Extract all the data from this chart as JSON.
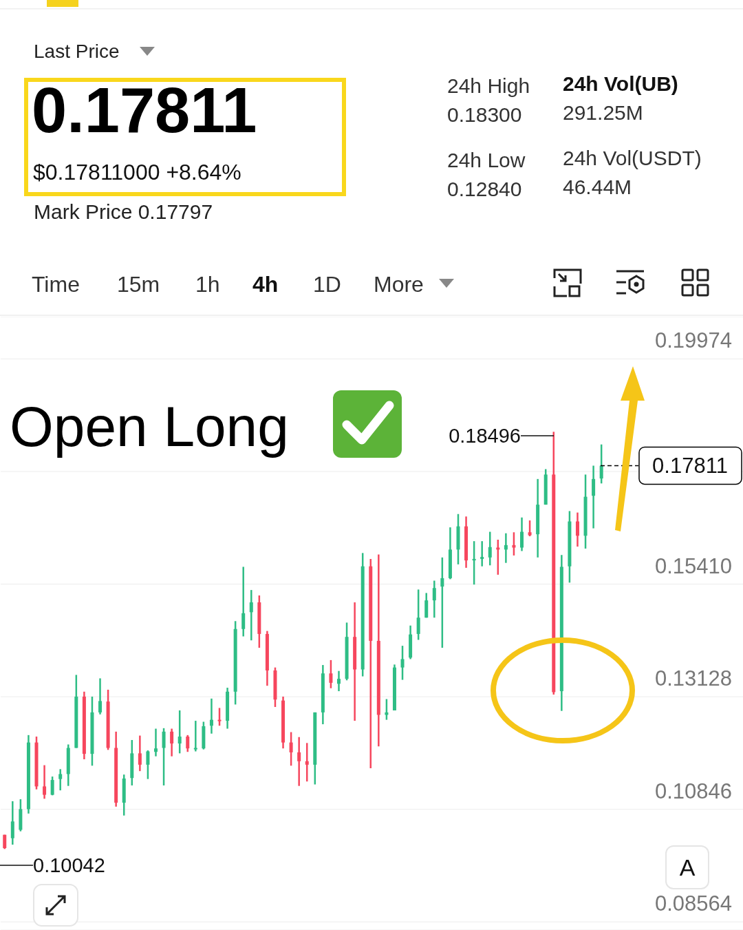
{
  "chart_data": {
    "type": "candlestick",
    "categories": [
      null,
      null,
      null,
      null,
      null,
      null,
      null,
      null,
      null,
      null,
      null,
      null,
      null,
      null,
      null,
      null,
      null,
      null,
      null,
      null,
      null,
      null,
      null,
      null,
      null,
      null,
      null,
      null,
      null,
      null,
      null,
      null,
      null,
      null,
      null,
      null,
      null,
      null,
      null,
      null,
      null,
      null,
      null,
      null,
      null,
      null,
      null,
      null,
      null,
      null,
      null,
      null,
      null,
      null,
      null,
      null,
      null,
      null,
      null,
      null,
      null,
      null,
      null,
      null,
      null,
      null,
      null,
      null,
      null,
      null,
      null,
      null,
      null,
      null,
      null,
      null
    ],
    "ohlc": [
      [
        0.1033,
        0.1033,
        0.10042,
        0.1006
      ],
      [
        0.1026,
        0.1101,
        0.1013,
        0.106
      ],
      [
        0.1043,
        0.1105,
        0.104,
        0.1085
      ],
      [
        0.1085,
        0.1235,
        0.1076,
        0.122
      ],
      [
        0.122,
        0.1232,
        0.1125,
        0.1131
      ],
      [
        0.1131,
        0.1174,
        0.1106,
        0.1114
      ],
      [
        0.1114,
        0.1151,
        0.1113,
        0.1144
      ],
      [
        0.1146,
        0.1166,
        0.1123,
        0.1156
      ],
      [
        0.1156,
        0.1216,
        0.1132,
        0.1209
      ],
      [
        0.1209,
        0.1357,
        0.1209,
        0.1313
      ],
      [
        0.1313,
        0.1323,
        0.1186,
        0.1197
      ],
      [
        0.1197,
        0.1313,
        0.1173,
        0.1281
      ],
      [
        0.1281,
        0.135,
        0.1277,
        0.1304
      ],
      [
        0.1303,
        0.1327,
        0.1205,
        0.1209
      ],
      [
        0.1209,
        0.1242,
        0.109,
        0.1098
      ],
      [
        0.1098,
        0.1155,
        0.1072,
        0.1147
      ],
      [
        0.1148,
        0.1225,
        0.1133,
        0.1198
      ],
      [
        0.1198,
        0.1234,
        0.1162,
        0.1175
      ],
      [
        0.1175,
        0.1204,
        0.1146,
        0.1202
      ],
      [
        0.1201,
        0.1248,
        0.1192,
        0.1208
      ],
      [
        0.1209,
        0.1249,
        0.1133,
        0.1242
      ],
      [
        0.1242,
        0.1248,
        0.1192,
        0.1218
      ],
      [
        0.1218,
        0.1285,
        0.1198,
        0.1232
      ],
      [
        0.1232,
        0.1235,
        0.1201,
        0.1208
      ],
      [
        0.1206,
        0.1264,
        0.1202,
        0.1209
      ],
      [
        0.1208,
        0.1262,
        0.1206,
        0.1253
      ],
      [
        0.1254,
        0.1309,
        0.1238,
        0.1266
      ],
      [
        0.1266,
        0.129,
        0.1254,
        0.1264
      ],
      [
        0.1264,
        0.1331,
        0.1248,
        0.1323
      ],
      [
        0.1323,
        0.1466,
        0.1297,
        0.145
      ],
      [
        0.145,
        0.1576,
        0.1435,
        0.1482
      ],
      [
        0.1484,
        0.1529,
        0.1427,
        0.1504
      ],
      [
        0.1504,
        0.1518,
        0.1412,
        0.144
      ],
      [
        0.144,
        0.1446,
        0.1335,
        0.1366
      ],
      [
        0.1366,
        0.1372,
        0.1292,
        0.1307
      ],
      [
        0.1305,
        0.1313,
        0.1208,
        0.122
      ],
      [
        0.122,
        0.1241,
        0.1173,
        0.12
      ],
      [
        0.12,
        0.1231,
        0.1132,
        0.1182
      ],
      [
        0.1182,
        0.1219,
        0.1141,
        0.1175
      ],
      [
        0.1175,
        0.1281,
        0.1135,
        0.1281
      ],
      [
        0.1281,
        0.1377,
        0.1257,
        0.136
      ],
      [
        0.136,
        0.1387,
        0.133,
        0.1341
      ],
      [
        0.1339,
        0.1365,
        0.1324,
        0.1349
      ],
      [
        0.1349,
        0.1463,
        0.1346,
        0.1434
      ],
      [
        0.1434,
        0.1504,
        0.1264,
        0.1368
      ],
      [
        0.1368,
        0.1604,
        0.1354,
        0.1577
      ],
      [
        0.1577,
        0.1592,
        0.1168,
        0.1426
      ],
      [
        0.1426,
        0.1601,
        0.1212,
        0.1276
      ],
      [
        0.1276,
        0.1308,
        0.1266,
        0.1281
      ],
      [
        0.1285,
        0.1378,
        0.1285,
        0.1372
      ],
      [
        0.1372,
        0.1416,
        0.1347,
        0.1389
      ],
      [
        0.1392,
        0.1457,
        0.1389,
        0.1439
      ],
      [
        0.144,
        0.153,
        0.1428,
        0.1473
      ],
      [
        0.1473,
        0.1523,
        0.1473,
        0.1508
      ],
      [
        0.1508,
        0.1548,
        0.1473,
        0.1533
      ],
      [
        0.1536,
        0.1595,
        0.1412,
        0.1553
      ],
      [
        0.1553,
        0.1656,
        0.1551,
        0.1611
      ],
      [
        0.1611,
        0.1683,
        0.1581,
        0.1658
      ],
      [
        0.1658,
        0.1678,
        0.1574,
        0.1589
      ],
      [
        0.1589,
        0.1628,
        0.154,
        0.1592
      ],
      [
        0.1592,
        0.1628,
        0.1577,
        0.1596
      ],
      [
        0.1595,
        0.1647,
        0.1579,
        0.1616
      ],
      [
        0.1615,
        0.1631,
        0.156,
        0.1611
      ],
      [
        0.1611,
        0.1644,
        0.1584,
        0.162
      ],
      [
        0.162,
        0.1646,
        0.1599,
        0.1615
      ],
      [
        0.1615,
        0.1676,
        0.1608,
        0.1647
      ],
      [
        0.1646,
        0.167,
        0.1638,
        0.164
      ],
      [
        0.1642,
        0.1754,
        0.1595,
        0.1702
      ],
      [
        0.1702,
        0.1774,
        0.1702,
        0.1763
      ],
      [
        0.1763,
        0.18496,
        0.1317,
        0.1322
      ],
      [
        0.1324,
        0.16,
        0.1284,
        0.1576
      ],
      [
        0.1577,
        0.1689,
        0.1544,
        0.1668
      ],
      [
        0.1668,
        0.1686,
        0.1617,
        0.1639
      ],
      [
        0.1639,
        0.1763,
        0.1613,
        0.1718
      ],
      [
        0.172,
        0.1781,
        0.1654,
        0.1754
      ],
      [
        0.1755,
        0.1824,
        0.1745,
        0.17811
      ]
    ],
    "colors": [
      "#f6465d",
      "#2ebd85",
      "#2ebd85",
      "#2ebd85",
      "#f6465d",
      "#f6465d",
      "#2ebd85",
      "#2ebd85",
      "#2ebd85",
      "#2ebd85",
      "#f6465d",
      "#2ebd85",
      "#2ebd85",
      "#f6465d",
      "#f6465d",
      "#2ebd85",
      "#2ebd85",
      "#f6465d",
      "#2ebd85",
      "#2ebd85",
      "#2ebd85",
      "#f6465d",
      "#2ebd85",
      "#f6465d",
      "#2ebd85",
      "#2ebd85",
      "#2ebd85",
      "#f6465d",
      "#2ebd85",
      "#2ebd85",
      "#2ebd85",
      "#2ebd85",
      "#f6465d",
      "#f6465d",
      "#f6465d",
      "#f6465d",
      "#f6465d",
      "#f6465d",
      "#f6465d",
      "#2ebd85",
      "#2ebd85",
      "#f6465d",
      "#2ebd85",
      "#2ebd85",
      "#f6465d",
      "#2ebd85",
      "#f6465d",
      "#f6465d",
      "#2ebd85",
      "#2ebd85",
      "#2ebd85",
      "#2ebd85",
      "#2ebd85",
      "#2ebd85",
      "#2ebd85",
      "#2ebd85",
      "#2ebd85",
      "#2ebd85",
      "#f6465d",
      "#2ebd85",
      "#2ebd85",
      "#2ebd85",
      "#f6465d",
      "#2ebd85",
      "#f6465d",
      "#2ebd85",
      "#f6465d",
      "#2ebd85",
      "#2ebd85",
      "#f6465d",
      "#2ebd85",
      "#2ebd85",
      "#f6465d",
      "#2ebd85",
      "#2ebd85",
      "#2ebd85"
    ],
    "ylim": [
      0.084,
      0.2083
    ],
    "yticks": [
      0.08564,
      0.10846,
      0.13128,
      {
        "value": 0.1541,
        "label": "0.15410"
      },
      {
        "value": 0.17692,
        "label": null
      },
      0.19974
    ],
    "grid": "y",
    "ref_lines": [
      {
        "axis": "y",
        "value": 0.17811,
        "label": "0.17811",
        "line_style": "dashed",
        "color": "#000000"
      }
    ],
    "annotations": [
      "Last Price",
      "0.17811",
      "$0.17811000 +8.64%",
      "Mark Price 0.17797",
      "24h High",
      "0.18300",
      "24h Vol(UB)",
      "291.25M",
      "24h Low",
      "0.12840",
      "24h Vol(USDT)",
      "46.44M",
      "Time",
      "15m",
      "1h",
      "4h",
      "1D",
      "More",
      "Open Long",
      "0.18496",
      "0.10042",
      "A"
    ]
  }
}
